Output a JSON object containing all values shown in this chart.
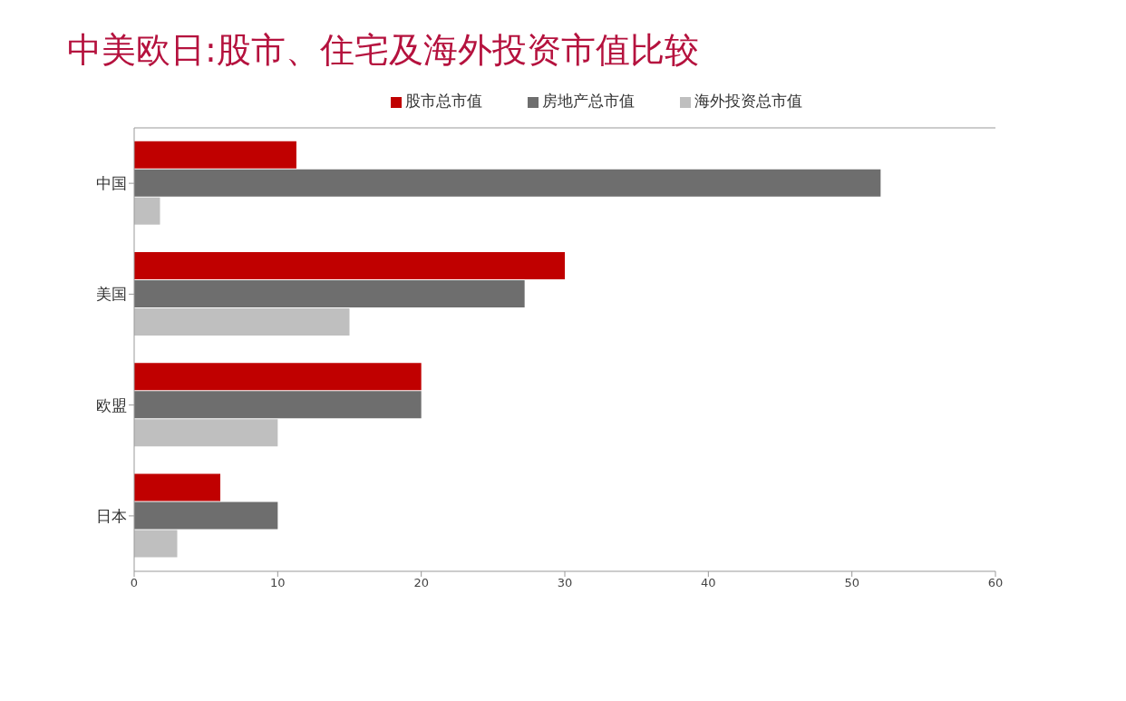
{
  "chart_data": {
    "type": "bar",
    "orientation": "horizontal",
    "title": "中美欧日:股市、住宅及海外投资市值比较",
    "categories": [
      "中国",
      "美国",
      "欧盟",
      "日本"
    ],
    "series": [
      {
        "name": "股市总市值",
        "color": "#c00000",
        "values": [
          11.3,
          30,
          20,
          6
        ]
      },
      {
        "name": "房地产总市值",
        "color": "#6e6e6e",
        "values": [
          52,
          27.2,
          20,
          10
        ]
      },
      {
        "name": "海外投资总市值",
        "color": "#bfbfbf",
        "values": [
          1.8,
          15,
          10,
          3
        ]
      }
    ],
    "xlim": [
      0,
      60
    ],
    "xticks": [
      0,
      10,
      20,
      30,
      40,
      50,
      60
    ],
    "grid": false,
    "legend": "top"
  }
}
